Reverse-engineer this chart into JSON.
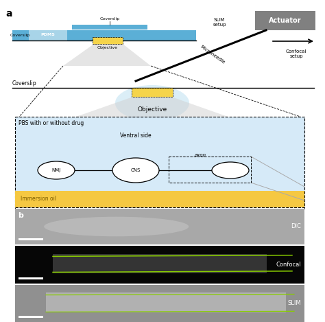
{
  "fig_width": 4.74,
  "fig_height": 4.69,
  "dpi": 100,
  "bg_color": "#ffffff",
  "coverslip_color": "#5bafd6",
  "pdms_color": "#a8d4e8",
  "yellow_color": "#f5d44a",
  "light_blue_color": "#d6eaf8",
  "immersion_oil_color": "#f5c842",
  "actuator_box_color": "#808080",
  "gray_cone_color": "#d0d0d0",
  "panel_a_label": "a",
  "panel_b_label": "b",
  "text_slim_setup": "SLIM\nsetup",
  "text_confocal_setup": "Confocal\nsetup",
  "text_actuator": "Actuator",
  "text_microneedle": "Microneedle",
  "text_pbs": "PBS with or without drug",
  "text_ventral": "Ventral side",
  "text_nmj": "NMJ",
  "text_cns": "CNS",
  "text_axon": "axon",
  "text_immersion_oil": "Immersion oil",
  "text_dic": "DIC",
  "text_confocal": "Confocal",
  "text_slim": "SLIM",
  "text_coverslip": "Coverslip",
  "text_pdms": "PDMS",
  "text_objective": "Objective",
  "green_color": "#88cc00"
}
